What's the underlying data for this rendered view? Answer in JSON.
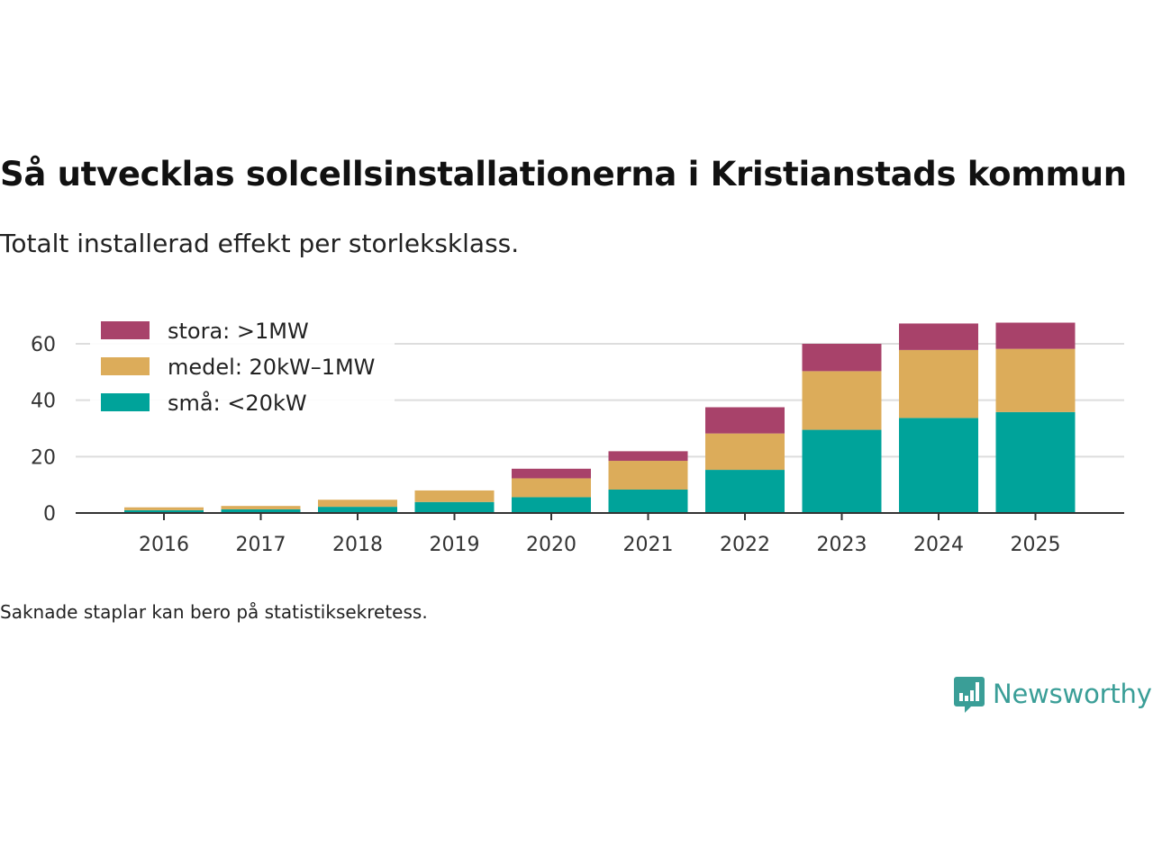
{
  "title": "Så utvecklas solcellsinstallationerna i Kristianstads kommun",
  "subtitle": "Totalt installerad effekt per storleksklass.",
  "note": "Saknade staplar kan bero på statistiksekretess.",
  "brand": {
    "name": "Newsworthy",
    "color": "#3a9e97"
  },
  "chart_data": {
    "type": "bar",
    "stacked": true,
    "title": "Så utvecklas solcellsinstallationerna i Kristianstads kommun",
    "subtitle": "Totalt installerad effekt per storleksklass.",
    "xlabel": "",
    "ylabel": "",
    "ylim": [
      0,
      70
    ],
    "yticks": [
      0,
      20,
      40,
      60
    ],
    "grid": true,
    "legend_position": "top-left",
    "categories": [
      "2016",
      "2017",
      "2018",
      "2019",
      "2020",
      "2021",
      "2022",
      "2023",
      "2024",
      "2025"
    ],
    "series": [
      {
        "name": "små: <20kW",
        "color": "#00a39a",
        "values": [
          1.0,
          1.3,
          2.2,
          3.9,
          5.6,
          8.3,
          15.3,
          29.5,
          33.7,
          35.8
        ]
      },
      {
        "name": "medel: 20kW–1MW",
        "color": "#dcac5a",
        "values": [
          1.0,
          1.2,
          2.5,
          4.1,
          6.7,
          10.2,
          12.9,
          20.8,
          24.1,
          22.4
        ]
      },
      {
        "name": "stora: >1MW",
        "color": "#a8426a",
        "values": [
          0,
          0,
          0,
          0,
          3.4,
          3.4,
          9.3,
          9.7,
          9.4,
          9.3
        ]
      }
    ]
  }
}
